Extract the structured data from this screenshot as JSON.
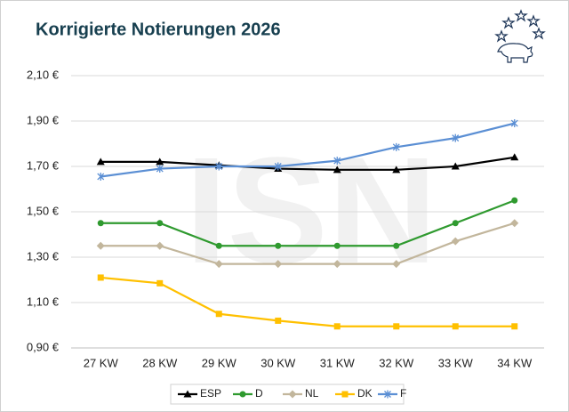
{
  "chart_data": {
    "type": "line",
    "title": "Korrigierte Notierungen 2026",
    "watermark": "ISN",
    "categories": [
      "27 KW",
      "28 KW",
      "29 KW",
      "30 KW",
      "31 KW",
      "32 KW",
      "33 KW",
      "34 KW"
    ],
    "series": [
      {
        "name": "ESP",
        "color": "#000000",
        "marker": "triangle",
        "values": [
          1.72,
          1.72,
          1.705,
          1.69,
          1.685,
          1.685,
          1.7,
          1.74
        ]
      },
      {
        "name": "D",
        "color": "#2f9a2f",
        "marker": "circle",
        "values": [
          1.45,
          1.45,
          1.35,
          1.35,
          1.35,
          1.35,
          1.45,
          1.55
        ]
      },
      {
        "name": "NL",
        "color": "#c2b69c",
        "marker": "diamond",
        "values": [
          1.35,
          1.35,
          1.27,
          1.27,
          1.27,
          1.27,
          1.37,
          1.45
        ]
      },
      {
        "name": "DK",
        "color": "#ffc000",
        "marker": "square",
        "values": [
          1.21,
          1.185,
          1.05,
          1.02,
          0.995,
          0.995,
          0.995,
          0.995
        ]
      },
      {
        "name": "F",
        "color": "#5b8fd4",
        "marker": "star",
        "values": [
          1.655,
          1.69,
          1.7,
          1.7,
          1.725,
          1.785,
          1.825,
          1.89
        ]
      }
    ],
    "ylim": [
      0.9,
      2.1
    ],
    "yticks": [
      {
        "value": 0.9,
        "label": "0,90 €"
      },
      {
        "value": 1.1,
        "label": "1,10 €"
      },
      {
        "value": 1.3,
        "label": "1,30 €"
      },
      {
        "value": 1.5,
        "label": "1,50 €"
      },
      {
        "value": 1.7,
        "label": "1,70 €"
      },
      {
        "value": 1.9,
        "label": "1,90 €"
      },
      {
        "value": 2.1,
        "label": "2,10 €"
      }
    ],
    "grid": true,
    "legend": "bottom"
  }
}
